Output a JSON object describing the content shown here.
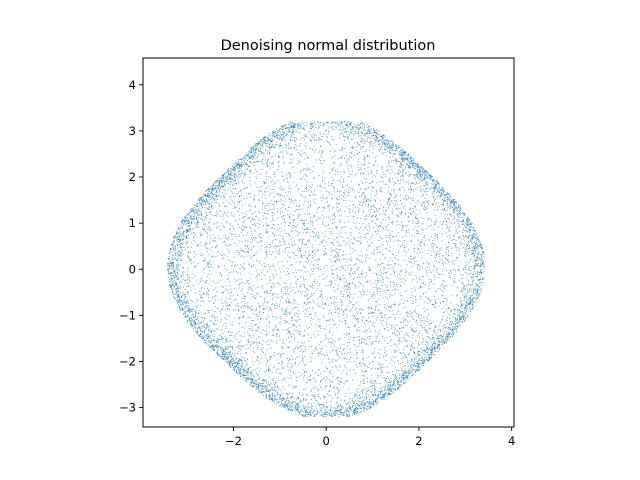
{
  "chart_data": {
    "type": "scatter",
    "title": "Denoising normal distribution",
    "xlabel": "",
    "ylabel": "",
    "xlim": [
      -3.95,
      4.05
    ],
    "ylim": [
      -3.42,
      4.58
    ],
    "xticks": [
      -2,
      0,
      2,
      4
    ],
    "yticks": [
      -3,
      -2,
      -1,
      0,
      1,
      2,
      3,
      4
    ],
    "xtick_labels": [
      "−2",
      "0",
      "2",
      "4"
    ],
    "ytick_labels": [
      "−3",
      "−2",
      "−1",
      "0",
      "1",
      "2",
      "3",
      "4"
    ],
    "grid": false,
    "legend": "none",
    "marker_color": "#1f77b4",
    "point_count_approx": 10000,
    "points_sample": [
      [
        -3.45,
        -0.3
      ],
      [
        -3.35,
        -0.55
      ],
      [
        -3.3,
        -0.9
      ],
      [
        -3.1,
        -1.2
      ],
      [
        -2.9,
        -1.55
      ],
      [
        -2.6,
        -1.9
      ],
      [
        -2.2,
        -2.25
      ],
      [
        -1.8,
        -2.55
      ],
      [
        -1.3,
        -2.75
      ],
      [
        -0.8,
        -2.85
      ],
      [
        -0.3,
        -2.9
      ],
      [
        0.2,
        -2.85
      ],
      [
        0.6,
        -2.7
      ],
      [
        1.0,
        -2.5
      ],
      [
        1.4,
        -2.1
      ],
      [
        1.8,
        -1.6
      ],
      [
        2.1,
        -1.1
      ],
      [
        2.3,
        -0.6
      ],
      [
        -2.0,
        1.0
      ],
      [
        -1.9,
        1.5
      ],
      [
        -1.6,
        1.9
      ],
      [
        -1.2,
        2.4
      ],
      [
        -0.8,
        2.65
      ],
      [
        -0.2,
        2.85
      ],
      [
        0.4,
        3.0
      ],
      [
        0.9,
        2.85
      ],
      [
        1.4,
        2.65
      ],
      [
        1.9,
        2.4
      ],
      [
        2.4,
        2.0
      ],
      [
        2.8,
        1.6
      ],
      [
        3.1,
        1.1
      ],
      [
        3.3,
        0.6
      ],
      [
        3.4,
        0.2
      ],
      [
        3.2,
        -0.15
      ],
      [
        -2.8,
        0.2
      ],
      [
        -2.4,
        0.5
      ],
      [
        0.0,
        0.0
      ],
      [
        0.5,
        1.0
      ],
      [
        -0.5,
        -1.0
      ],
      [
        1.0,
        -0.5
      ],
      [
        -1.0,
        0.5
      ],
      [
        1.5,
        0.8
      ],
      [
        -1.5,
        -0.8
      ],
      [
        0.8,
        1.8
      ],
      [
        -0.8,
        -1.8
      ]
    ],
    "description_shape": {
      "region": "rotated rounded square / diamond-like blob",
      "center": [
        0.0,
        0.0
      ],
      "dense_rim": true
    }
  }
}
